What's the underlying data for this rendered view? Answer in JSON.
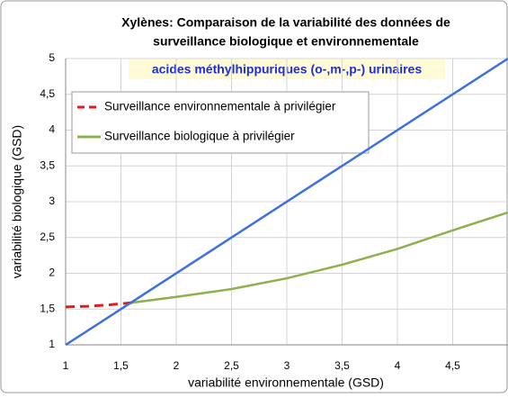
{
  "chart_data": {
    "type": "line",
    "title": [
      "Xylènes: Comparaison de la variabilité des données de",
      "surveillance biologique et environnementale"
    ],
    "subtitle": "acides méthylhippuriques (o-,m-,p-) urinaires",
    "x_label": "variabilité environnementale (GSD)",
    "y_label": "variabilité biologique (GSD)",
    "xlim": [
      1,
      5
    ],
    "ylim": [
      1,
      5
    ],
    "grid": true,
    "legend": "upper left",
    "xticks": [
      1,
      {
        "value": 1.5,
        "label": "1,5"
      },
      2,
      {
        "value": 2.5,
        "label": "2,5"
      },
      3,
      {
        "value": 3.5,
        "label": "3,5"
      },
      4,
      {
        "value": 4.5,
        "label": "4,5"
      }
    ],
    "yticks": [
      1,
      {
        "value": 1.5,
        "label": "1,5"
      },
      2,
      {
        "value": 2.5,
        "label": "2,5"
      },
      3,
      {
        "value": 3.5,
        "label": "3,5"
      },
      4,
      {
        "value": 4.5,
        "label": "4,5"
      },
      5
    ],
    "series": [
      {
        "name": "Surveillance environnementale  à privilégier",
        "color": "#e41a1c",
        "dashed": true,
        "x": [
          1,
          1.2,
          1.4,
          1.6
        ],
        "values": [
          1.53,
          1.54,
          1.56,
          1.59
        ]
      },
      {
        "name": "Surveillance biologique à privilégier",
        "color": "#8db14c",
        "dashed": false,
        "x": [
          1.6,
          2,
          2.5,
          3,
          3.5,
          4,
          4.5,
          5
        ],
        "values": [
          1.59,
          1.67,
          1.78,
          1.93,
          2.12,
          2.34,
          2.6,
          2.85
        ]
      },
      {
        "color": "#3f6fe0",
        "dashed": false,
        "x": [
          1,
          5
        ],
        "values": [
          1,
          5
        ]
      }
    ]
  }
}
